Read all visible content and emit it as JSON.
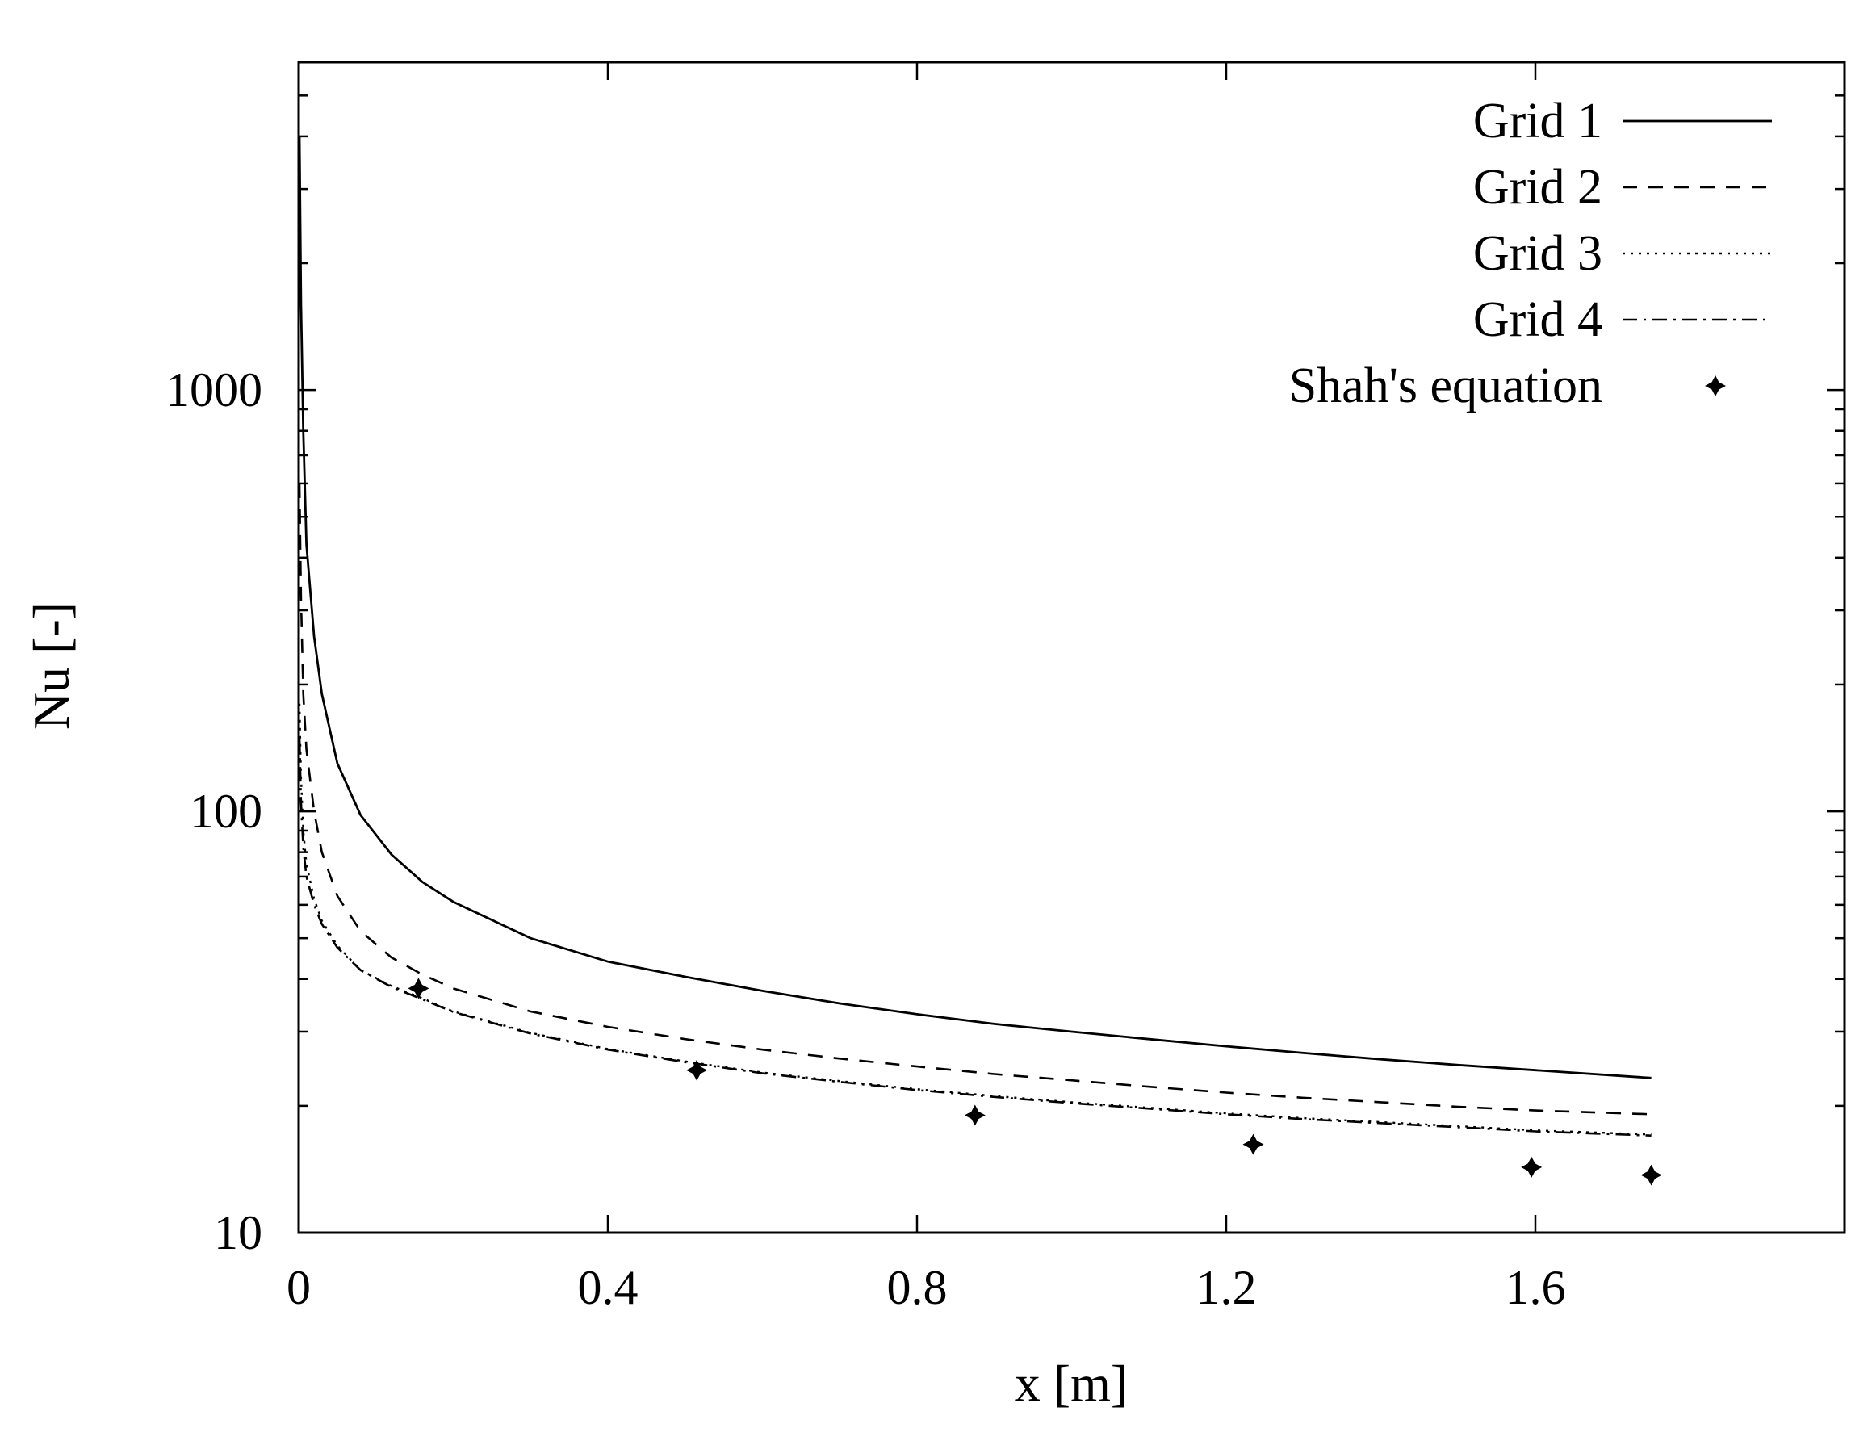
{
  "chart_data": {
    "type": "line",
    "title": "",
    "xlabel": "x [m]",
    "ylabel": "Nu [-]",
    "xlim": [
      0,
      2.0
    ],
    "ylim": [
      10,
      6000
    ],
    "yscale": "log",
    "xticks": [
      0,
      0.4,
      0.8,
      1.2,
      1.6
    ],
    "xtick_labels": [
      "0",
      "0.4",
      "0.8",
      "1.2",
      "1.6"
    ],
    "yticks": [
      10,
      100,
      1000
    ],
    "ytick_labels": [
      "10",
      "100",
      "1000"
    ],
    "grid": false,
    "legend_position": "top-right",
    "series": [
      {
        "name": "Grid 1",
        "style": "solid",
        "x": [
          0.001,
          0.003,
          0.006,
          0.01,
          0.02,
          0.03,
          0.05,
          0.08,
          0.12,
          0.16,
          0.2,
          0.3,
          0.4,
          0.5,
          0.6,
          0.7,
          0.8,
          0.9,
          1.0,
          1.1,
          1.2,
          1.3,
          1.4,
          1.5,
          1.6,
          1.75
        ],
        "y": [
          4000,
          1600,
          800,
          430,
          260,
          190,
          130,
          98,
          79,
          68,
          61,
          50,
          44,
          40.5,
          37.5,
          35,
          33,
          31.3,
          30,
          28.8,
          27.7,
          26.7,
          25.8,
          25,
          24.3,
          23.3
        ]
      },
      {
        "name": "Grid 2",
        "style": "dashed",
        "x": [
          0.001,
          0.003,
          0.006,
          0.01,
          0.02,
          0.03,
          0.05,
          0.08,
          0.12,
          0.16,
          0.2,
          0.3,
          0.4,
          0.5,
          0.6,
          0.7,
          0.8,
          0.9,
          1.0,
          1.1,
          1.2,
          1.3,
          1.4,
          1.5,
          1.6,
          1.75
        ],
        "y": [
          600,
          320,
          190,
          140,
          100,
          80,
          63,
          52,
          45,
          41,
          38,
          33.5,
          30.8,
          28.8,
          27.2,
          25.9,
          24.8,
          23.8,
          23,
          22.2,
          21.5,
          20.9,
          20.4,
          19.9,
          19.5,
          19.1
        ]
      },
      {
        "name": "Grid 3",
        "style": "dotted",
        "x": [
          0.001,
          0.003,
          0.006,
          0.01,
          0.02,
          0.03,
          0.05,
          0.08,
          0.12,
          0.16,
          0.2,
          0.3,
          0.4,
          0.5,
          0.6,
          0.7,
          0.8,
          0.9,
          1.0,
          1.1,
          1.2,
          1.3,
          1.4,
          1.5,
          1.6,
          1.75
        ],
        "y": [
          180,
          120,
          90,
          75,
          62,
          55,
          48,
          42,
          38.5,
          36,
          33.5,
          29.8,
          27.3,
          25.5,
          24,
          22.9,
          21.9,
          21.1,
          20.4,
          19.8,
          19.2,
          18.7,
          18.3,
          17.9,
          17.5,
          17.1
        ]
      },
      {
        "name": "Grid 4",
        "style": "dashdot",
        "x": [
          0.001,
          0.003,
          0.006,
          0.01,
          0.02,
          0.03,
          0.05,
          0.08,
          0.12,
          0.16,
          0.2,
          0.3,
          0.4,
          0.5,
          0.6,
          0.7,
          0.8,
          0.9,
          1.0,
          1.1,
          1.2,
          1.3,
          1.4,
          1.5,
          1.6,
          1.75
        ],
        "y": [
          150,
          105,
          82,
          70,
          60,
          54,
          47.5,
          42,
          38.3,
          35.8,
          33.4,
          29.7,
          27.2,
          25.4,
          23.9,
          22.8,
          21.8,
          21,
          20.3,
          19.7,
          19.1,
          18.6,
          18.2,
          17.8,
          17.4,
          17
        ]
      },
      {
        "name": "Shah's equation",
        "style": "markers",
        "x": [
          0.155,
          0.515,
          0.875,
          1.235,
          1.595,
          1.75
        ],
        "y": [
          38,
          24.3,
          19,
          16.2,
          14.3,
          13.7
        ]
      }
    ]
  }
}
